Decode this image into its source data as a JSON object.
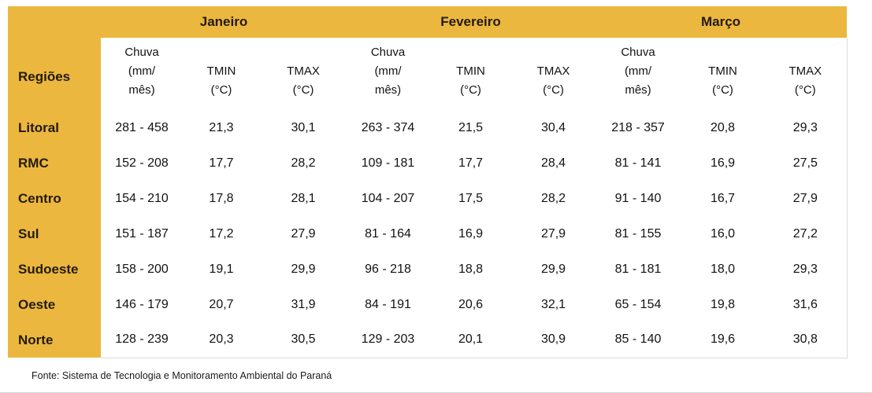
{
  "colors": {
    "header_yellow": "#ecb73e",
    "header_text": "#221b10",
    "body_text": "#121212",
    "table_border": "#dcdcdc"
  },
  "chart_data": {
    "type": "table",
    "title": "",
    "region_column_header": "Regiões",
    "months": [
      "Janeiro",
      "Fevereiro",
      "Março"
    ],
    "measure_headers": [
      {
        "key": "chuva",
        "label_lines": [
          "Chuva",
          "(mm/",
          "mês)"
        ]
      },
      {
        "key": "tmin",
        "label_lines": [
          "TMIN",
          "(°C)"
        ]
      },
      {
        "key": "tmax",
        "label_lines": [
          "TMAX",
          "(°C)"
        ]
      }
    ],
    "rows": [
      {
        "region": "Litoral",
        "values": [
          "281 - 458",
          "21,3",
          "30,1",
          "263 - 374",
          "21,5",
          "30,4",
          "218 - 357",
          "20,8",
          "29,3"
        ]
      },
      {
        "region": "RMC",
        "values": [
          "152 - 208",
          "17,7",
          "28,2",
          "109 - 181",
          "17,7",
          "28,4",
          "81 - 141",
          "16,9",
          "27,5"
        ]
      },
      {
        "region": "Centro",
        "values": [
          "154 - 210",
          "17,8",
          "28,1",
          "104 - 207",
          "17,5",
          "28,2",
          "91 - 140",
          "16,7",
          "27,9"
        ]
      },
      {
        "region": "Sul",
        "values": [
          "151 - 187",
          "17,2",
          "27,9",
          "81 - 164",
          "16,9",
          "27,9",
          "81 - 155",
          "16,0",
          "27,2"
        ]
      },
      {
        "region": "Sudoeste",
        "values": [
          "158 - 200",
          "19,1",
          "29,9",
          "96 - 218",
          "18,8",
          "29,9",
          "81 - 181",
          "18,0",
          "29,3"
        ]
      },
      {
        "region": "Oeste",
        "values": [
          "146 - 179",
          "20,7",
          "31,9",
          "84 - 191",
          "20,6",
          "32,1",
          "65 - 154",
          "19,8",
          "31,6"
        ]
      },
      {
        "region": "Norte",
        "values": [
          "128 - 239",
          "20,3",
          "30,5",
          "129 - 203",
          "20,1",
          "30,9",
          "85 - 140",
          "19,6",
          "30,8"
        ]
      }
    ],
    "source": "Fonte: Sistema de Tecnologia e Monitoramento Ambiental do Paraná"
  }
}
